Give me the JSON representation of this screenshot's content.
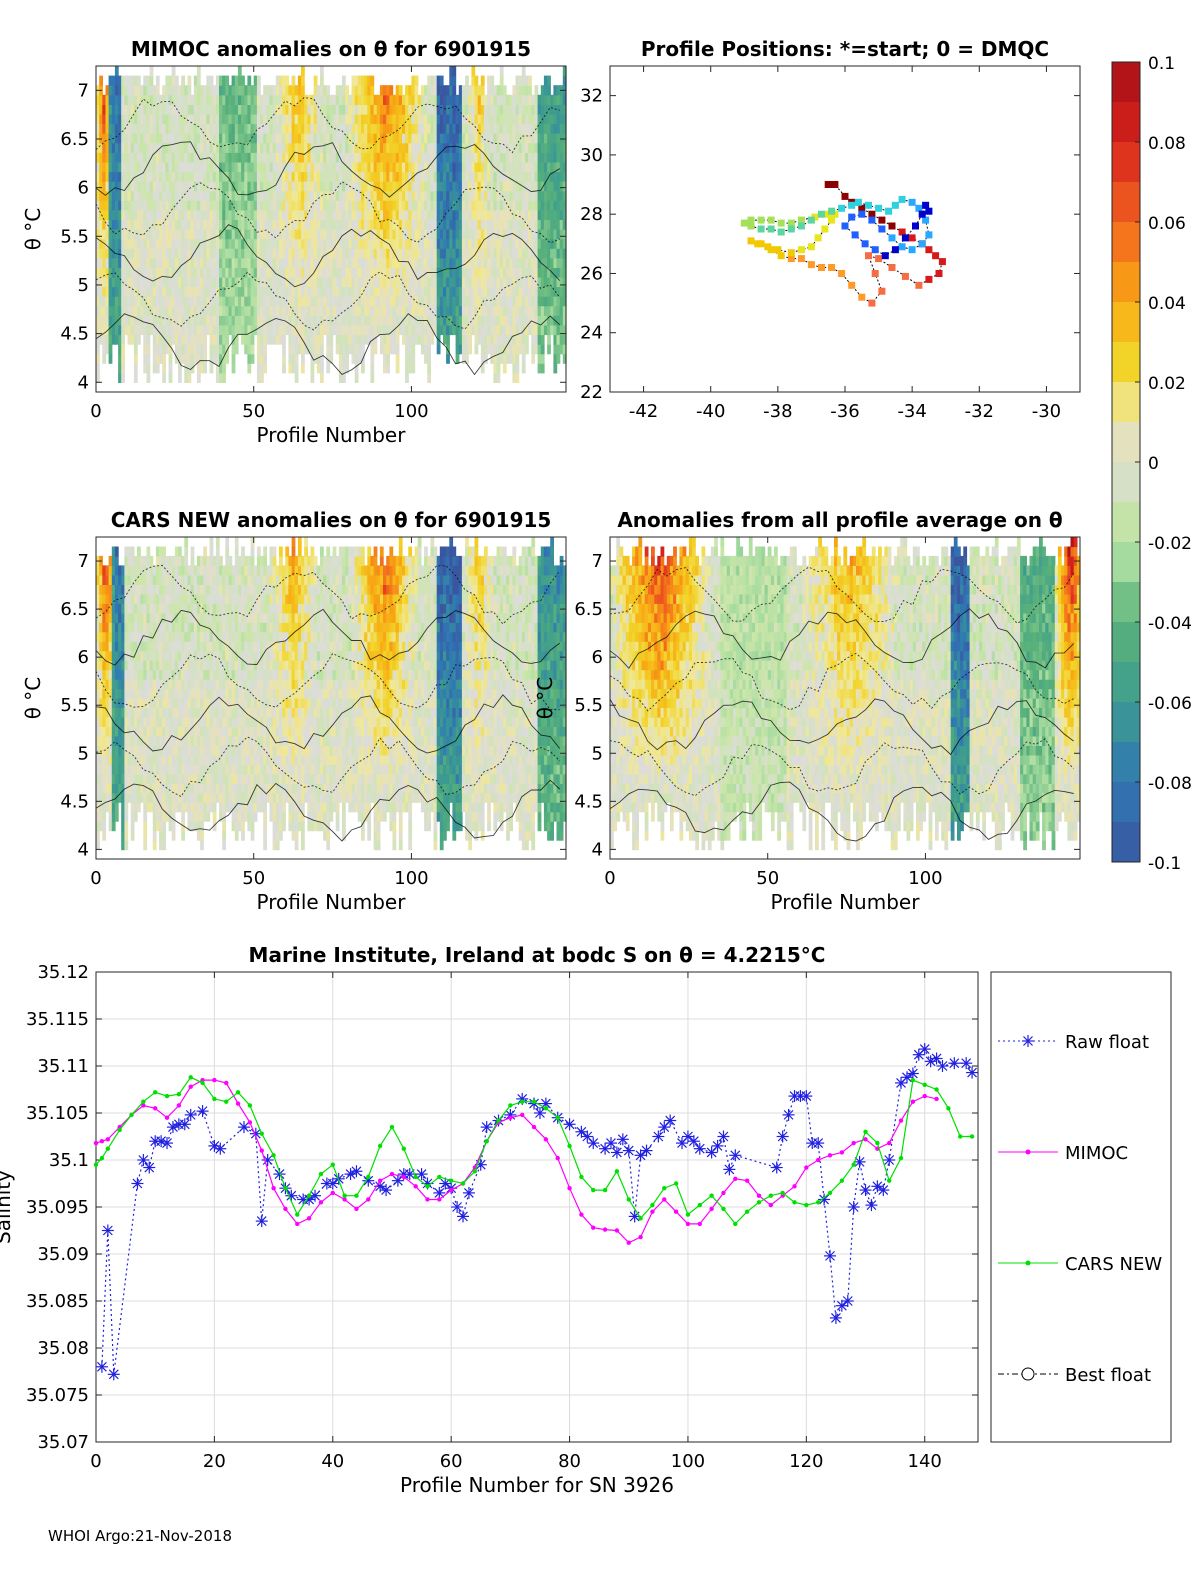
{
  "footer": "WHOI Argo:21-Nov-2018",
  "colorbar": {
    "ticks": [
      "0.1",
      "0.08",
      "0.06",
      "0.04",
      "0.02",
      "0",
      "-0.02",
      "-0.04",
      "-0.06",
      "-0.08",
      "-0.1"
    ],
    "colors": [
      "#a50f15",
      "#d7191c",
      "#f25a1b",
      "#f88d0c",
      "#f2c900",
      "#f4e27a",
      "#dcdcdc",
      "#cbe6a8",
      "#a6dba0",
      "#5ab27a",
      "#3d9c8f",
      "#2f78b4",
      "#3a56a0"
    ]
  },
  "chart_data": [
    {
      "id": "mimoc",
      "type": "heatmap",
      "title": "MIMOC anomalies on θ  for 6901915",
      "xlabel": "Profile Number",
      "ylabel": "θ °C",
      "xlim": [
        0,
        149
      ],
      "ylim": [
        3.9,
        7.25
      ],
      "xticks": [
        "0",
        "50",
        "100"
      ],
      "xtick_values": [
        0,
        50,
        100
      ],
      "yticks": [
        "4",
        "4.5",
        "5",
        "5.5",
        "6",
        "6.5",
        "7"
      ],
      "ytick_values": [
        4,
        4.5,
        5,
        5.5,
        6,
        6.5,
        7
      ],
      "hot_bands": [
        {
          "x": [
            1,
            3
          ],
          "level": 0.07
        },
        {
          "x": [
            58,
            70
          ],
          "level": 0.035
        },
        {
          "x": [
            80,
            103
          ],
          "level": 0.055
        },
        {
          "x": [
            119,
            123
          ],
          "level": 0.03
        }
      ],
      "cold_bands": [
        {
          "x": [
            4,
            7
          ],
          "level": -0.09
        },
        {
          "x": [
            108,
            115
          ],
          "level": -0.1
        },
        {
          "x": [
            140,
            149
          ],
          "level": -0.06
        },
        {
          "x": [
            39,
            50
          ],
          "level": -0.04
        }
      ]
    },
    {
      "id": "positions",
      "type": "scatter",
      "title": "Profile Positions: *=start; 0 = DMQC",
      "xlim": [
        -43,
        -29
      ],
      "ylim": [
        22,
        33
      ],
      "xticks": [
        "-42",
        "-40",
        "-38",
        "-36",
        "-34",
        "-32",
        "-30"
      ],
      "xtick_values": [
        -42,
        -40,
        -38,
        -36,
        -34,
        -32,
        -30
      ],
      "yticks": [
        "22",
        "24",
        "26",
        "28",
        "30",
        "32"
      ],
      "ytick_values": [
        22,
        24,
        26,
        28,
        30,
        32
      ],
      "lon": [
        -36.5,
        -36.3,
        -36.0,
        -35.8,
        -35.5,
        -35.2,
        -34.9,
        -34.6,
        -34.3,
        -34.0,
        -33.7,
        -33.5,
        -33.3,
        -33.1,
        -33.2,
        -33.5,
        -33.8,
        -34.2,
        -34.6,
        -35.0,
        -35.3,
        -35.1,
        -34.9,
        -35.2,
        -35.5,
        -35.8,
        -36.1,
        -36.4,
        -36.7,
        -37.0,
        -37.3,
        -37.6,
        -37.9,
        -38.2,
        -38.5,
        -38.8,
        -38.6,
        -38.3,
        -38.0,
        -37.6,
        -37.3,
        -37.0,
        -36.8,
        -36.6,
        -36.4,
        -36.3,
        -36.5,
        -36.9,
        -37.3,
        -37.6,
        -37.9,
        -38.2,
        -38.5,
        -38.8,
        -39.0,
        -38.8,
        -38.5,
        -38.2,
        -37.9,
        -37.6,
        -37.3,
        -37.0,
        -36.7,
        -36.4,
        -36.1,
        -35.8,
        -35.6,
        -35.3,
        -35.0,
        -34.7,
        -34.5,
        -34.3,
        -34.0,
        -33.8,
        -33.6,
        -33.5,
        -33.7,
        -34.0,
        -34.3,
        -34.6,
        -34.9,
        -35.2,
        -35.5,
        -35.8,
        -36.0,
        -35.7,
        -35.4,
        -35.1,
        -34.8,
        -34.5,
        -34.2,
        -33.9,
        -33.7,
        -33.6,
        -33.5
      ],
      "lat": [
        29.0,
        29.0,
        28.6,
        28.4,
        28.2,
        28.0,
        27.8,
        27.6,
        27.4,
        27.2,
        27.0,
        26.8,
        26.6,
        26.4,
        26.0,
        25.8,
        25.6,
        25.9,
        26.2,
        26.5,
        26.6,
        26.0,
        25.4,
        25.0,
        25.2,
        25.6,
        26.0,
        26.2,
        26.2,
        26.3,
        26.5,
        26.5,
        26.6,
        26.8,
        27.0,
        27.1,
        27.0,
        26.9,
        26.8,
        26.7,
        26.8,
        26.9,
        27.2,
        27.5,
        27.8,
        28.0,
        28.0,
        27.9,
        27.8,
        27.7,
        27.7,
        27.8,
        27.8,
        27.8,
        27.7,
        27.6,
        27.5,
        27.5,
        27.4,
        27.5,
        27.6,
        27.8,
        28.0,
        28.1,
        28.2,
        28.3,
        28.4,
        28.3,
        28.2,
        28.1,
        28.3,
        28.5,
        28.4,
        28.2,
        27.8,
        27.3,
        27.0,
        26.8,
        26.9,
        27.2,
        27.5,
        27.8,
        28.0,
        27.9,
        27.6,
        27.3,
        27.0,
        26.8,
        26.6,
        26.8,
        27.2,
        27.6,
        28.0,
        28.3,
        28.1
      ],
      "colorscale": [
        "#8b0000",
        "#d7191c",
        "#f46d43",
        "#fd9a2a",
        "#f2c900",
        "#e6e61a",
        "#a6e05a",
        "#5cd6a0",
        "#2fd0e0",
        "#28a8ff",
        "#2060ff",
        "#0000cc"
      ]
    },
    {
      "id": "cars",
      "type": "heatmap",
      "title": "CARS NEW anomalies on θ for 6901915",
      "xlabel": "Profile Number",
      "ylabel": "θ °C",
      "xlim": [
        0,
        149
      ],
      "ylim": [
        3.9,
        7.25
      ],
      "xticks": [
        "0",
        "50",
        "100"
      ],
      "xtick_values": [
        0,
        50,
        100
      ],
      "yticks": [
        "4",
        "4.5",
        "5",
        "5.5",
        "6",
        "6.5",
        "7"
      ],
      "ytick_values": [
        4,
        4.5,
        5,
        5.5,
        6,
        6.5,
        7
      ],
      "hot_bands": [
        {
          "x": [
            1,
            4
          ],
          "level": 0.07
        },
        {
          "x": [
            56,
            68
          ],
          "level": 0.04
        },
        {
          "x": [
            82,
            100
          ],
          "level": 0.06
        },
        {
          "x": [
            118,
            124
          ],
          "level": 0.03
        }
      ],
      "cold_bands": [
        {
          "x": [
            5,
            8
          ],
          "level": -0.09
        },
        {
          "x": [
            108,
            115
          ],
          "level": -0.1
        },
        {
          "x": [
            140,
            149
          ],
          "level": -0.07
        }
      ]
    },
    {
      "id": "allavg",
      "type": "heatmap",
      "title": "Anomalies from all profile average on θ",
      "xlabel": "Profile Number",
      "ylabel": "θ °C",
      "xlim": [
        0,
        149
      ],
      "ylim": [
        3.9,
        7.25
      ],
      "xticks": [
        "0",
        "50",
        "100"
      ],
      "xtick_values": [
        0,
        50,
        100
      ],
      "yticks": [
        "4",
        "4.5",
        "5",
        "5.5",
        "6",
        "6.5",
        "7"
      ],
      "ytick_values": [
        4,
        4.5,
        5,
        5.5,
        6,
        6.5,
        7
      ],
      "hot_bands": [
        {
          "x": [
            1,
            30
          ],
          "level": 0.075
        },
        {
          "x": [
            62,
            90
          ],
          "level": 0.04
        },
        {
          "x": [
            142,
            149
          ],
          "level": 0.08
        }
      ],
      "cold_bands": [
        {
          "x": [
            108,
            113
          ],
          "level": -0.1
        },
        {
          "x": [
            130,
            140
          ],
          "level": -0.05
        },
        {
          "x": [
            35,
            55
          ],
          "level": -0.02
        }
      ]
    },
    {
      "id": "salinity",
      "type": "line",
      "title": "Marine Institute, Ireland at bodc S on θ = 4.2215°C",
      "xlabel": "Profile Number for SN 3926",
      "ylabel": "Salinity",
      "xlim": [
        0,
        149
      ],
      "ylim": [
        35.07,
        35.12
      ],
      "xticks": [
        "0",
        "20",
        "40",
        "60",
        "80",
        "100",
        "120",
        "140"
      ],
      "xtick_values": [
        0,
        20,
        40,
        60,
        80,
        100,
        120,
        140
      ],
      "yticks": [
        "35.07",
        "35.075",
        "35.08",
        "35.085",
        "35.09",
        "35.095",
        "35.1",
        "35.105",
        "35.11",
        "35.115",
        "35.12"
      ],
      "ytick_values": [
        35.07,
        35.075,
        35.08,
        35.085,
        35.09,
        35.095,
        35.1,
        35.105,
        35.11,
        35.115,
        35.12
      ],
      "legend": [
        "Raw float",
        "MIMOC",
        "CARS NEW",
        "Best float"
      ],
      "series": [
        {
          "name": "Raw float",
          "color": "#2020e0",
          "x": [
            1,
            2,
            3,
            7,
            8,
            9,
            10,
            11,
            12,
            13,
            14,
            15,
            16,
            18,
            20,
            21,
            25,
            27,
            28,
            29,
            31,
            32,
            33,
            35,
            36,
            37,
            39,
            40,
            41,
            43,
            44,
            46,
            48,
            49,
            51,
            52,
            53,
            55,
            56,
            58,
            59,
            60,
            61,
            62,
            63,
            65,
            66,
            68,
            70,
            72,
            74,
            75,
            76,
            78,
            80,
            82,
            83,
            84,
            86,
            87,
            88,
            89,
            90,
            91,
            92,
            93,
            95,
            96,
            97,
            99,
            100,
            101,
            102,
            104,
            105,
            106,
            107,
            108,
            115,
            116,
            117,
            118,
            119,
            120,
            121,
            122,
            123,
            124,
            125,
            126,
            127,
            128,
            129,
            130,
            131,
            132,
            133,
            134,
            136,
            137,
            138,
            139,
            140,
            141,
            142,
            143,
            145,
            147,
            148
          ],
          "y": [
            35.078,
            35.0925,
            35.0772,
            35.0975,
            35.1,
            35.0992,
            35.102,
            35.102,
            35.1018,
            35.1035,
            35.1038,
            35.1038,
            35.1048,
            35.1052,
            35.1015,
            35.1012,
            35.1035,
            35.1028,
            35.0935,
            35.1,
            35.0985,
            35.097,
            35.0962,
            35.0958,
            35.0958,
            35.0962,
            35.0975,
            35.0975,
            35.098,
            35.0985,
            35.0988,
            35.0978,
            35.0972,
            35.0968,
            35.0978,
            35.0985,
            35.0985,
            35.0985,
            35.0975,
            35.0965,
            35.0975,
            35.097,
            35.095,
            35.094,
            35.0965,
            35.0995,
            35.1035,
            35.1042,
            35.1048,
            35.1065,
            35.106,
            35.105,
            35.106,
            35.1045,
            35.1038,
            35.103,
            35.1025,
            35.1018,
            35.1012,
            35.1018,
            35.1008,
            35.1022,
            35.101,
            35.094,
            35.1005,
            35.101,
            35.1025,
            35.1035,
            35.1042,
            35.1018,
            35.1025,
            35.102,
            35.1012,
            35.1008,
            35.1015,
            35.1025,
            35.099,
            35.1005,
            35.0992,
            35.1025,
            35.1048,
            35.1068,
            35.1068,
            35.1068,
            35.1018,
            35.1018,
            35.0958,
            35.0898,
            35.0832,
            35.0845,
            35.085,
            35.095,
            35.0998,
            35.0968,
            35.0952,
            35.0972,
            35.0968,
            35.1,
            35.1082,
            35.1088,
            35.1092,
            35.1112,
            35.1118,
            35.1105,
            35.1108,
            35.11,
            35.1103,
            35.1103,
            35.1093
          ]
        },
        {
          "name": "MIMOC",
          "color": "#ff00ff",
          "x": [
            0,
            1,
            2,
            4,
            6,
            8,
            10,
            12,
            14,
            16,
            18,
            20,
            22,
            24,
            26,
            28,
            30,
            32,
            34,
            36,
            38,
            40,
            42,
            44,
            46,
            48,
            50,
            52,
            54,
            56,
            58,
            60,
            62,
            64,
            66,
            68,
            70,
            72,
            74,
            76,
            78,
            80,
            82,
            84,
            86,
            88,
            90,
            92,
            94,
            96,
            98,
            100,
            102,
            104,
            106,
            108,
            110,
            112,
            114,
            116,
            118,
            120,
            122,
            124,
            126,
            128,
            130,
            132,
            134,
            136,
            138,
            140,
            142
          ],
          "y": [
            35.1018,
            35.102,
            35.1022,
            35.1035,
            35.1048,
            35.1058,
            35.1055,
            35.1045,
            35.1058,
            35.1078,
            35.1085,
            35.1085,
            35.1082,
            35.106,
            35.104,
            35.101,
            35.097,
            35.0948,
            35.0932,
            35.0938,
            35.0955,
            35.0965,
            35.0958,
            35.0948,
            35.0958,
            35.0978,
            35.0985,
            35.0982,
            35.0972,
            35.0958,
            35.0958,
            35.0968,
            35.0975,
            35.0992,
            35.102,
            35.104,
            35.1045,
            35.1048,
            35.1035,
            35.1022,
            35.1002,
            35.097,
            35.0942,
            35.0928,
            35.0926,
            35.0925,
            35.0912,
            35.0918,
            35.0945,
            35.0958,
            35.0945,
            35.0932,
            35.0932,
            35.0948,
            35.0965,
            35.098,
            35.0978,
            35.0962,
            35.0952,
            35.0962,
            35.0972,
            35.0992,
            35.1,
            35.1005,
            35.1008,
            35.1018,
            35.1022,
            35.1012,
            35.1018,
            35.1042,
            35.1062,
            35.1068,
            35.1065
          ]
        },
        {
          "name": "CARS NEW",
          "color": "#00e000",
          "x": [
            0,
            1,
            2,
            4,
            6,
            8,
            10,
            12,
            14,
            16,
            18,
            20,
            22,
            24,
            26,
            28,
            30,
            32,
            34,
            36,
            38,
            40,
            42,
            44,
            46,
            48,
            50,
            52,
            54,
            56,
            58,
            60,
            62,
            64,
            66,
            68,
            70,
            72,
            74,
            76,
            78,
            80,
            82,
            84,
            86,
            88,
            90,
            92,
            94,
            96,
            98,
            100,
            102,
            104,
            106,
            108,
            110,
            112,
            114,
            116,
            118,
            120,
            122,
            124,
            126,
            128,
            130,
            132,
            134,
            136,
            138,
            140,
            142,
            144,
            146,
            148
          ],
          "y": [
            35.0995,
            35.1002,
            35.1012,
            35.1032,
            35.1048,
            35.1062,
            35.1072,
            35.1068,
            35.107,
            35.1088,
            35.1082,
            35.1065,
            35.1062,
            35.1072,
            35.1058,
            35.1028,
            35.1005,
            35.097,
            35.0942,
            35.0962,
            35.0985,
            35.0995,
            35.0962,
            35.0962,
            35.0982,
            35.1015,
            35.1035,
            35.1012,
            35.0982,
            35.0972,
            35.0982,
            35.0978,
            35.0975,
            35.0988,
            35.102,
            35.1042,
            35.1058,
            35.1062,
            35.1062,
            35.1055,
            35.1045,
            35.1015,
            35.0982,
            35.0968,
            35.0968,
            35.0988,
            35.0958,
            35.0938,
            35.0952,
            35.097,
            35.0975,
            35.0942,
            35.0952,
            35.0962,
            35.0948,
            35.0932,
            35.0945,
            35.0955,
            35.0962,
            35.0965,
            35.0955,
            35.0952,
            35.0955,
            35.0965,
            35.0978,
            35.0995,
            35.103,
            35.1018,
            35.0978,
            35.1002,
            35.1085,
            35.108,
            35.1075,
            35.1055,
            35.1025,
            35.1025
          ]
        }
      ]
    }
  ]
}
